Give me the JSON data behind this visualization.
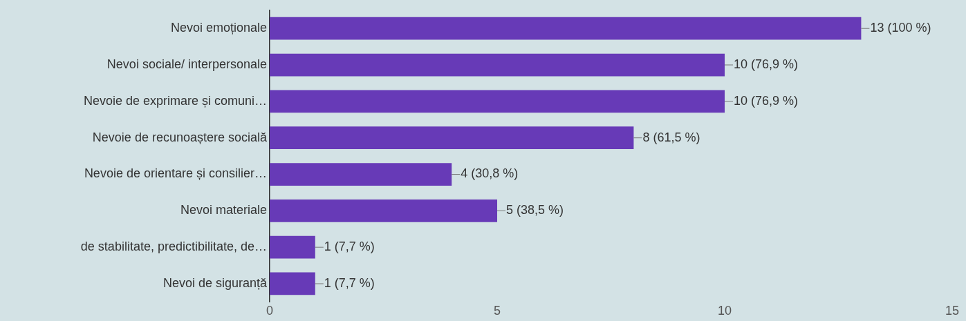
{
  "chart_data": {
    "type": "bar",
    "orientation": "horizontal",
    "categories": [
      "Nevoi emoționale",
      "Nevoi sociale/ interpersonale",
      "Nevoie de exprimare și comuni…",
      "Nevoie de recunoaștere socială",
      "Nevoie de orientare și consilier…",
      "Nevoi materiale",
      "de stabilitate, predictibilitate, de…",
      "Nevoi de siguranță"
    ],
    "values": [
      13,
      10,
      10,
      8,
      4,
      5,
      1,
      1
    ],
    "value_labels": [
      "13 (100 %)",
      "10 (76,9 %)",
      "10 (76,9 %)",
      "8 (61,5 %)",
      "4 (30,8 %)",
      "5 (38,5 %)",
      "1 (7,7 %)",
      "1 (7,7 %)"
    ],
    "color": "#673ab7",
    "xlim": [
      0,
      15
    ],
    "xticks": [
      0,
      5,
      10,
      15
    ],
    "grid": false,
    "legend": false
  }
}
